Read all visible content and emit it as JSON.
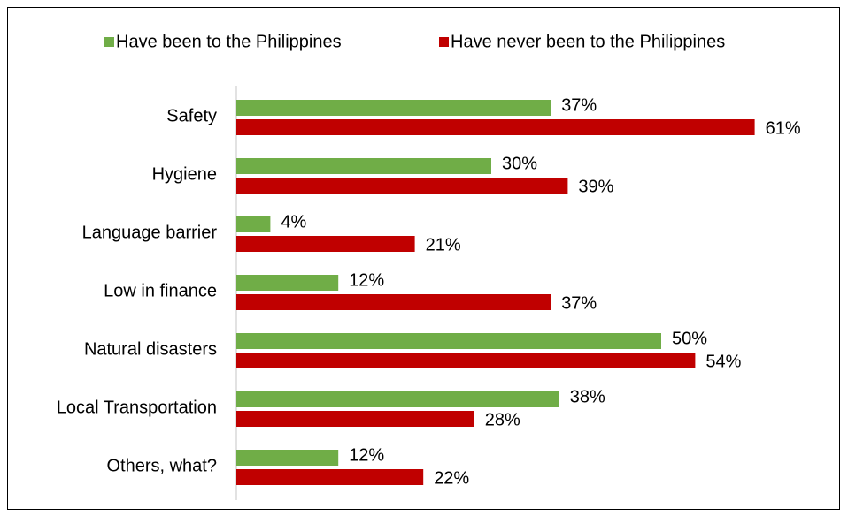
{
  "chart_data": {
    "type": "hbar",
    "categories": [
      "Safety",
      "Hygiene",
      "Language barrier",
      "Low in finance",
      "Natural disasters",
      "Local Transportation",
      "Others, what?"
    ],
    "series": [
      {
        "name": "Have been to the Philippines",
        "color": "#70ad47",
        "values": [
          37,
          30,
          4,
          12,
          50,
          38,
          12
        ],
        "value_labels": [
          "37%",
          "30%",
          "4%",
          "12%",
          "50%",
          "38%",
          "12%"
        ]
      },
      {
        "name": "Have never been to the Philippines",
        "color": "#c00000",
        "values": [
          61,
          39,
          21,
          37,
          54,
          28,
          22
        ],
        "value_labels": [
          "61%",
          "39%",
          "21%",
          "37%",
          "54%",
          "28%",
          "22%"
        ]
      }
    ],
    "xlim": [
      0,
      70
    ],
    "legend": "top"
  }
}
